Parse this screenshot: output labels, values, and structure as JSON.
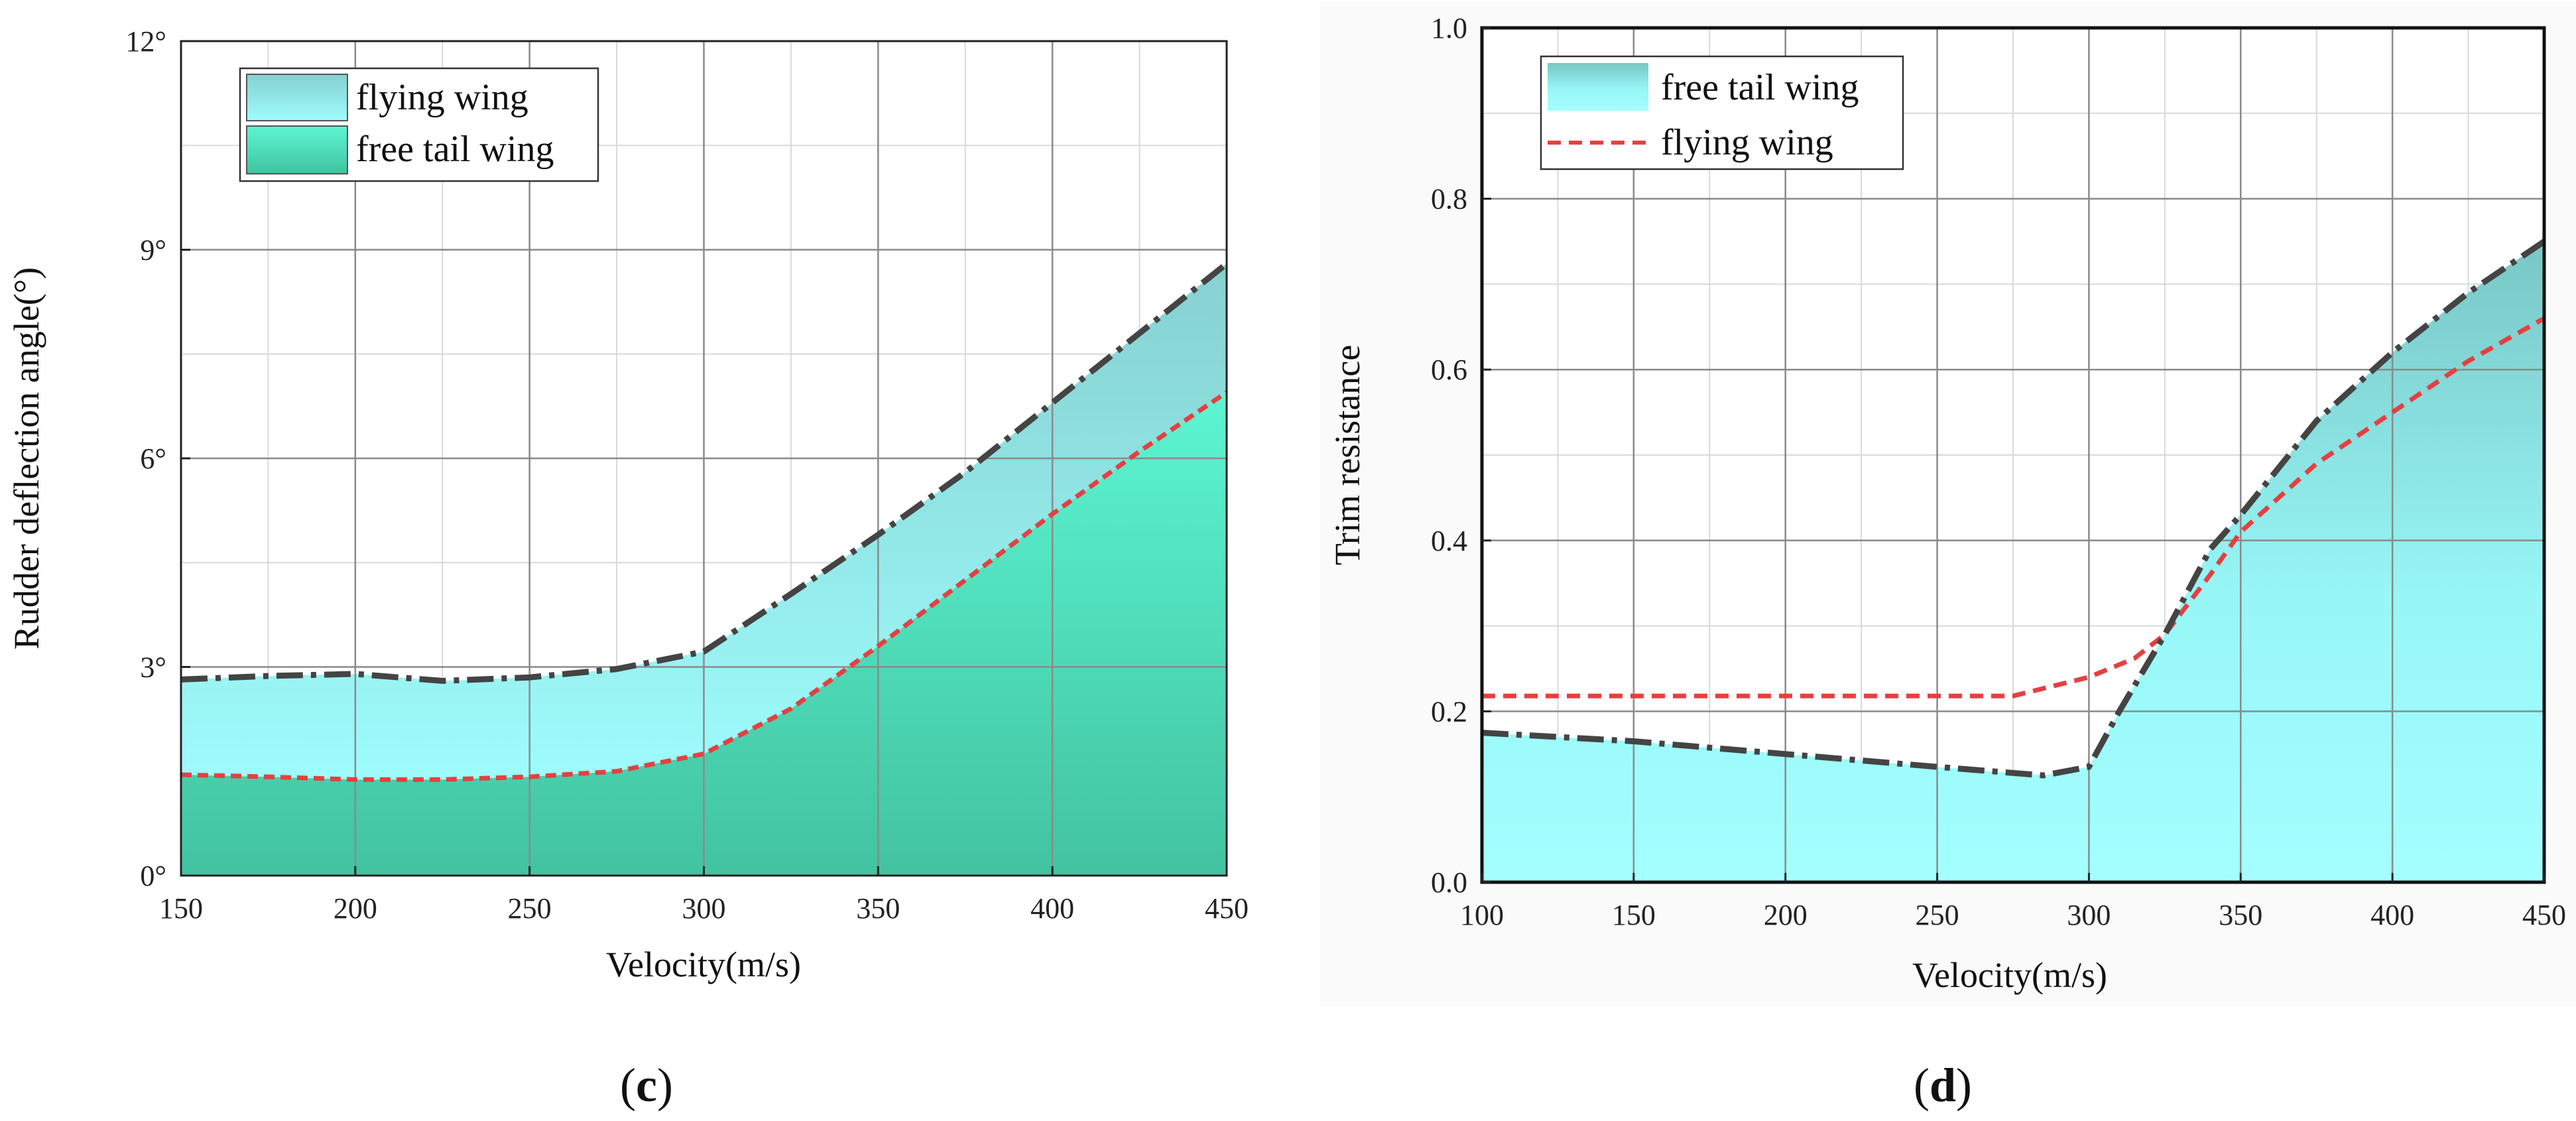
{
  "charts": {
    "c": {
      "caption_open": "(",
      "caption_letter": "c",
      "caption_close": ")",
      "colors": {
        "upper_fill": "#99fefe",
        "lower_fill": "#45c9a6",
        "top_line": "#444444",
        "dashed_line": "#e54040"
      },
      "legend": {
        "fly": "flying wing",
        "free": "free tail wing"
      },
      "xlabel": "Velocity(m/s)",
      "ylabel": "Rudder deflection angle(°)",
      "ytick_labels": [
        "0°",
        "3°",
        "6°",
        "9°",
        "12°"
      ],
      "xtick_labels": [
        "150",
        "200",
        "250",
        "300",
        "350",
        "400",
        "450"
      ]
    },
    "d": {
      "caption_open": "(",
      "caption_letter": "d",
      "caption_close": ")",
      "colors": {
        "area_fill": "#8ef4f4",
        "top_line": "#444444",
        "dashed_line": "#e54040"
      },
      "legend": {
        "free": "free tail wing",
        "fly": "flying wing"
      },
      "xlabel": "Velocity(m/s)",
      "ylabel": "Trim resistance",
      "ytick_labels": [
        "0.0",
        "0.2",
        "0.4",
        "0.6",
        "0.8",
        "1.0"
      ],
      "xtick_labels": [
        "100",
        "150",
        "200",
        "250",
        "300",
        "350",
        "400",
        "450"
      ]
    }
  },
  "chart_data": [
    {
      "type": "area",
      "panel": "c",
      "xlabel": "Velocity(m/s)",
      "ylabel": "Rudder deflection angle(°)",
      "xlim": [
        150,
        450
      ],
      "ylim": [
        0,
        12
      ],
      "xticks": [
        150,
        200,
        250,
        300,
        350,
        400,
        450
      ],
      "yticks": [
        0,
        3,
        6,
        9,
        12
      ],
      "grid": true,
      "legend_position": "top-left",
      "series": [
        {
          "name": "flying wing",
          "style": "dash-dot",
          "x": [
            150,
            175,
            200,
            225,
            250,
            275,
            300,
            325,
            350,
            375,
            400,
            425,
            450
          ],
          "y": [
            2.82,
            2.87,
            2.9,
            2.8,
            2.85,
            2.97,
            3.22,
            4.05,
            4.9,
            5.8,
            6.8,
            7.8,
            8.8
          ]
        },
        {
          "name": "free tail wing",
          "style": "dashed",
          "x": [
            150,
            175,
            200,
            225,
            250,
            275,
            300,
            325,
            350,
            375,
            400,
            425,
            450
          ],
          "y": [
            1.45,
            1.42,
            1.38,
            1.38,
            1.42,
            1.5,
            1.75,
            2.4,
            3.3,
            4.25,
            5.2,
            6.1,
            6.95
          ]
        }
      ]
    },
    {
      "type": "area",
      "panel": "d",
      "xlabel": "Velocity(m/s)",
      "ylabel": "Trim resistance",
      "xlim": [
        100,
        450
      ],
      "ylim": [
        0,
        1.0
      ],
      "xticks": [
        100,
        150,
        200,
        250,
        300,
        350,
        400,
        450
      ],
      "yticks": [
        0,
        0.2,
        0.4,
        0.6,
        0.8,
        1.0
      ],
      "grid": true,
      "legend_position": "top-left",
      "series": [
        {
          "name": "free tail wing",
          "style": "dash-dot, filled",
          "x": [
            100,
            150,
            200,
            250,
            285,
            300,
            310,
            325,
            340,
            350,
            375,
            400,
            425,
            450
          ],
          "y": [
            0.175,
            0.165,
            0.15,
            0.135,
            0.125,
            0.135,
            0.2,
            0.29,
            0.39,
            0.43,
            0.54,
            0.62,
            0.69,
            0.75
          ]
        },
        {
          "name": "flying wing",
          "style": "dashed",
          "x": [
            100,
            150,
            200,
            250,
            275,
            300,
            315,
            325,
            340,
            350,
            375,
            400,
            425,
            450
          ],
          "y": [
            0.218,
            0.218,
            0.218,
            0.218,
            0.218,
            0.24,
            0.262,
            0.29,
            0.36,
            0.41,
            0.49,
            0.55,
            0.61,
            0.66
          ]
        }
      ]
    }
  ]
}
